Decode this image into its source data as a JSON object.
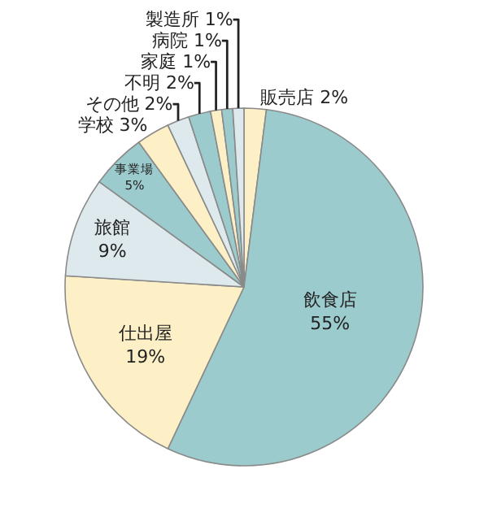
{
  "chart_data": {
    "type": "pie",
    "categories": [
      "販売店",
      "飲食店",
      "仕出屋",
      "旅館",
      "事業場",
      "学校",
      "その他",
      "不明",
      "家庭",
      "病院",
      "製造所"
    ],
    "values": [
      2,
      55,
      19,
      9,
      5,
      3,
      2,
      2,
      1,
      1,
      1
    ],
    "value_labels": [
      "2%",
      "55%",
      "19%",
      "9%",
      "5%",
      "3%",
      "2%",
      "2%",
      "1%",
      "1%",
      "1%"
    ],
    "colors": [
      "#fdf0c6",
      "#9ccbcd",
      "#fdf0c6",
      "#dde9ec",
      "#9ccbcd",
      "#fdf0c6",
      "#dde9ec",
      "#9ccbcd",
      "#fdf0c6",
      "#9ccbcd",
      "#dde9ec"
    ],
    "legend": false
  }
}
